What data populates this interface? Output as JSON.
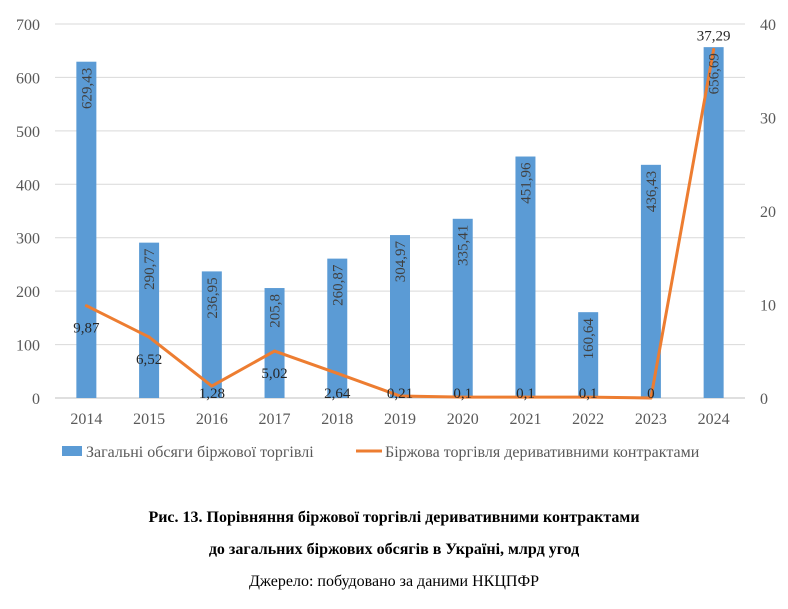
{
  "chart_data": {
    "type": "bar",
    "categories": [
      "2014",
      "2015",
      "2016",
      "2017",
      "2018",
      "2019",
      "2020",
      "2021",
      "2022",
      "2023",
      "2024"
    ],
    "series": [
      {
        "name": "Загальні обсяги біржової торгівлі",
        "type": "bar",
        "axis": "left",
        "color": "#5B9BD5",
        "values": [
          629.43,
          290.77,
          236.95,
          205.8,
          260.87,
          304.97,
          335.41,
          451.96,
          160.64,
          436.43,
          656.69
        ],
        "labels": [
          "629,43",
          "290,77",
          "236,95",
          "205,8",
          "260,87",
          "304,97",
          "335,41",
          "451,96",
          "160,64",
          "436,43",
          "656,69"
        ]
      },
      {
        "name": "Біржова торгівля деривативними контрактами",
        "type": "line",
        "axis": "right",
        "color": "#ED7D31",
        "values": [
          9.87,
          6.52,
          1.28,
          5.02,
          2.64,
          0.21,
          0.1,
          0.1,
          0.1,
          0,
          37.29
        ],
        "labels": [
          "9,87",
          "6,52",
          "1,28",
          "5,02",
          "2,64",
          "0,21",
          "0,1",
          "0,1",
          "0,1",
          "0",
          "37,29"
        ]
      }
    ],
    "y_left": {
      "ylim": [
        0,
        700
      ],
      "ticks": [
        "0",
        "100",
        "200",
        "300",
        "400",
        "500",
        "600",
        "700"
      ],
      "tick_values": [
        0,
        100,
        200,
        300,
        400,
        500,
        600,
        700
      ]
    },
    "y_right": {
      "ylim": [
        0,
        40
      ],
      "ticks": [
        "0",
        "10",
        "20",
        "30",
        "40"
      ],
      "tick_values": [
        0,
        10,
        20,
        30,
        40
      ]
    },
    "grid": true,
    "legend": "bottom",
    "title": "",
    "xlabel": "",
    "ylabel": ""
  },
  "caption": {
    "line1": "Рис. 13. Порівняння біржової торгівлі деривативними контрактами",
    "line2": "до загальних біржових обсягів в Україні, млрд угод",
    "source": "Джерело: побудовано за даними НКЦПФР"
  }
}
